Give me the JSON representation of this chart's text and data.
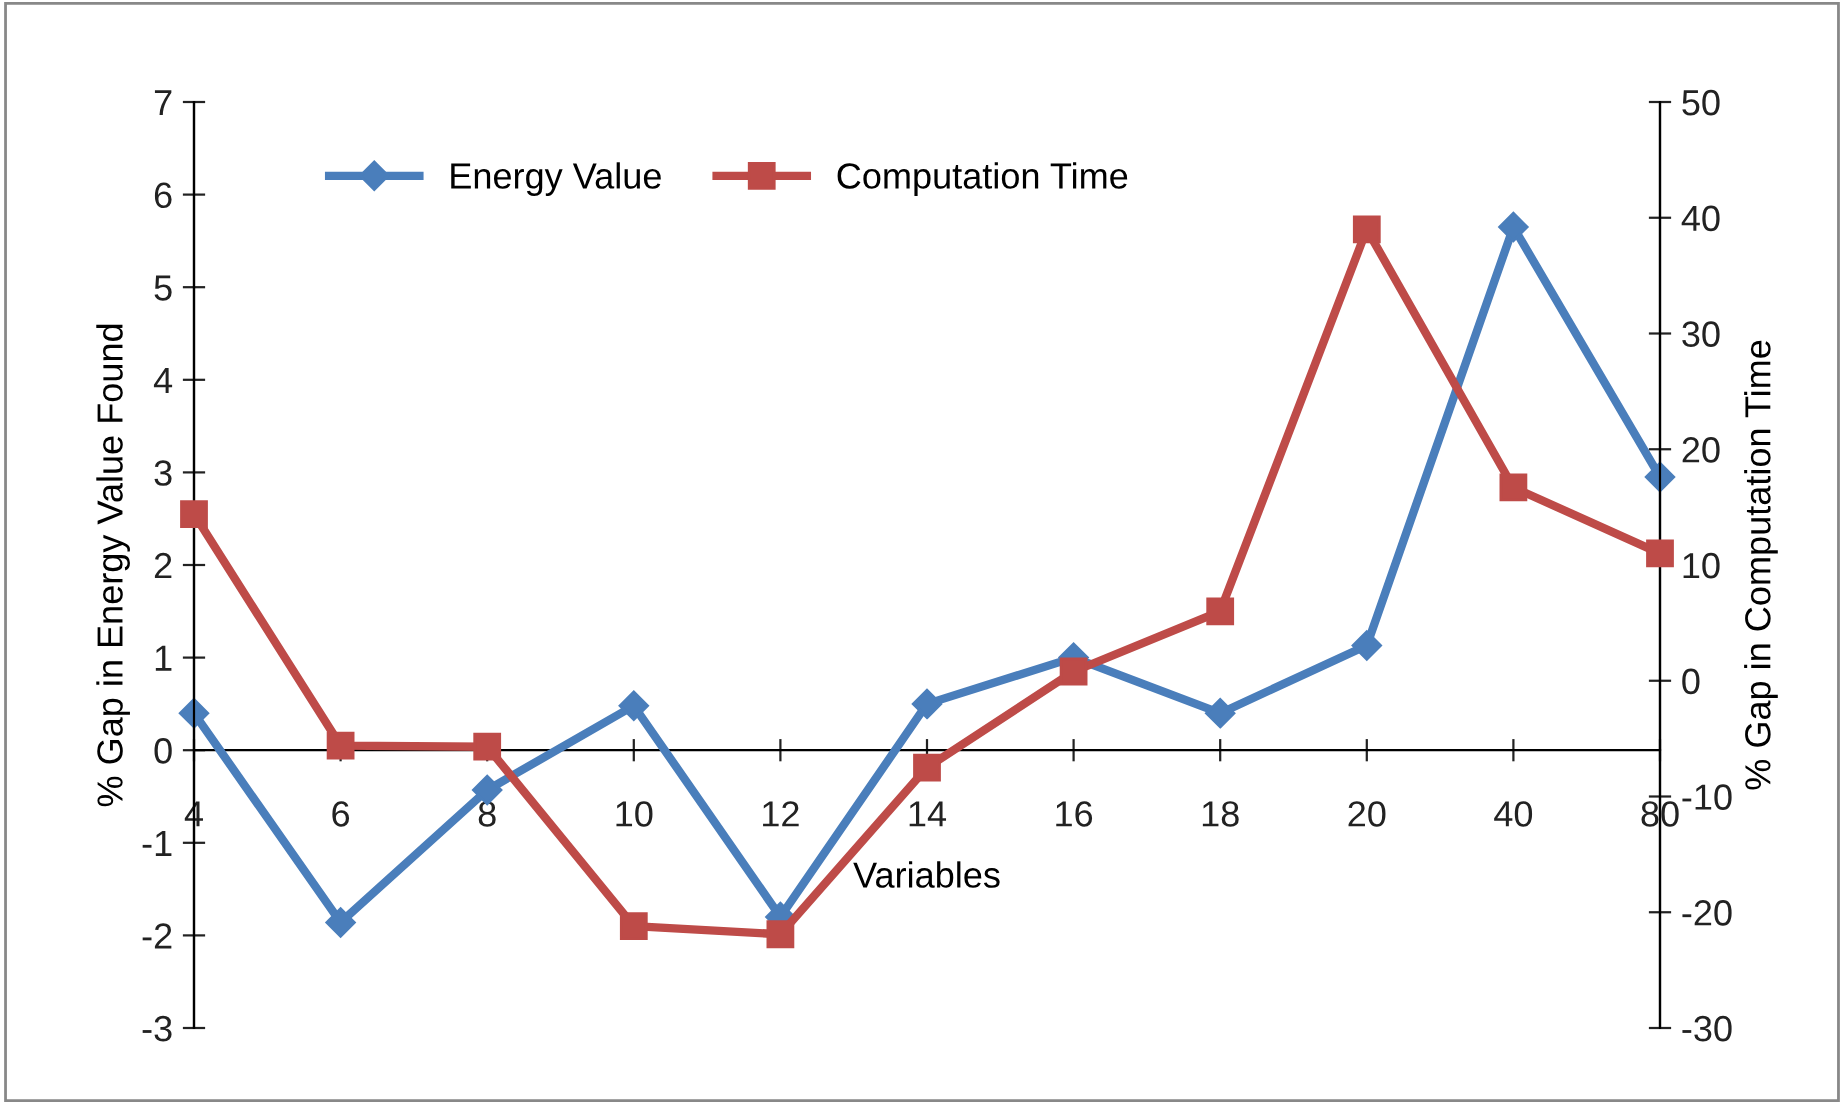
{
  "chart_data": {
    "type": "line",
    "xlabel": "Variables",
    "ylabel": "% Gap in Energy Value Found",
    "y2label": "% Gap in Computation Time",
    "categories": [
      "4",
      "6",
      "8",
      "10",
      "12",
      "14",
      "16",
      "18",
      "20",
      "40",
      "80"
    ],
    "series": [
      {
        "name": "Energy Value",
        "color": "#4a7ebb",
        "marker": "diamond",
        "values": [
          0.4,
          -1.86,
          -0.43,
          0.48,
          -1.8,
          0.5,
          1.0,
          0.4,
          1.13,
          5.65,
          2.95
        ]
      },
      {
        "name": "Computation Time",
        "color": "#be4b48",
        "marker": "square",
        "axis": "y2",
        "values": [
          14.4,
          -5.6,
          -5.7,
          -21.2,
          -21.9,
          -7.5,
          0.8,
          6.0,
          39,
          16.7,
          11.0
        ]
      }
    ],
    "ylim": [
      -3,
      7
    ],
    "yticks": [
      -3,
      -2,
      -1,
      0,
      1,
      2,
      3,
      4,
      5,
      6,
      7
    ],
    "y2lim": [
      -30,
      50
    ],
    "y2ticks": [
      -30,
      -20,
      -10,
      0,
      10,
      20,
      30,
      40,
      50
    ],
    "grid": false,
    "legend": "top",
    "line_style": "solid"
  }
}
